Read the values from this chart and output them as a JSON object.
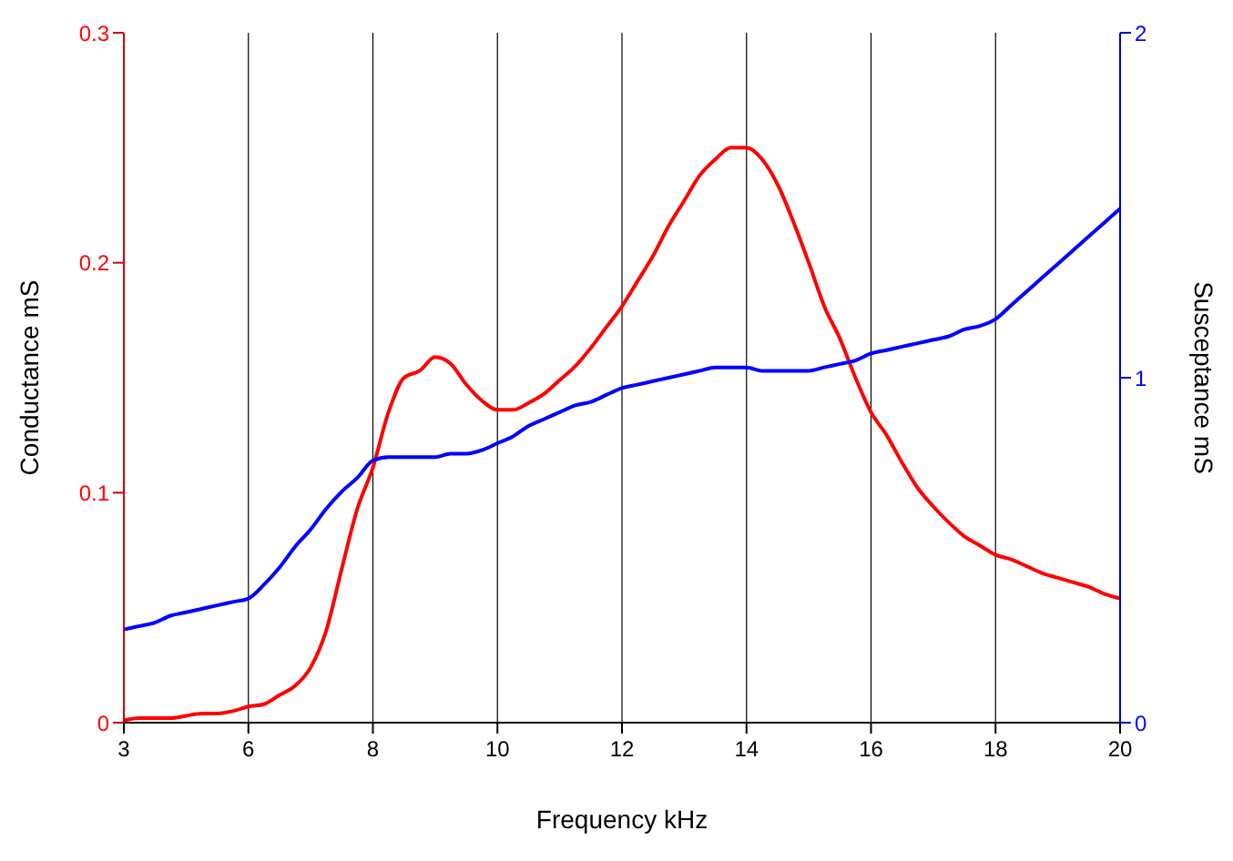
{
  "chart_data": {
    "type": "line",
    "xlabel": "Frequency kHz",
    "ylabel": "Conductance mS",
    "y2label": "Susceptance mS",
    "categories": [
      "3",
      null,
      null,
      null,
      null,
      null,
      null,
      null,
      "6",
      null,
      null,
      null,
      null,
      null,
      null,
      null,
      "8",
      null,
      null,
      null,
      null,
      null,
      null,
      null,
      "10",
      null,
      null,
      null,
      null,
      null,
      null,
      null,
      "12",
      null,
      null,
      null,
      null,
      null,
      null,
      null,
      "14",
      null,
      null,
      null,
      null,
      null,
      null,
      null,
      "16",
      null,
      null,
      null,
      null,
      null,
      null,
      null,
      "18",
      null,
      null,
      null,
      null,
      null,
      null,
      null,
      "20"
    ],
    "series": [
      {
        "color": "#ff0000",
        "values": [
          0.001,
          0.002,
          0.002,
          0.002,
          0.003,
          0.004,
          0.004,
          0.005,
          0.007,
          0.008,
          0.012,
          0.016,
          0.024,
          0.04,
          0.067,
          0.093,
          0.111,
          0.135,
          0.15,
          0.153,
          0.159,
          0.156,
          0.147,
          0.14,
          0.136,
          0.136,
          0.139,
          0.143,
          0.149,
          0.155,
          0.163,
          0.172,
          0.181,
          0.192,
          0.203,
          0.216,
          0.227,
          0.238,
          0.245,
          0.25,
          0.25,
          0.245,
          0.234,
          0.218,
          0.2,
          0.181,
          0.167,
          0.15,
          0.135,
          0.125,
          0.113,
          0.102,
          0.094,
          0.087,
          0.081,
          0.077,
          0.073,
          0.071,
          0.068,
          0.065,
          0.063,
          0.061,
          0.059,
          0.056,
          0.054
        ]
      },
      {
        "color": "#0000ff",
        "axis": "y2",
        "values": [
          0.27,
          0.28,
          0.29,
          0.31,
          0.32,
          0.33,
          0.34,
          0.35,
          0.36,
          0.4,
          0.45,
          0.51,
          0.56,
          0.62,
          0.67,
          0.71,
          0.76,
          0.77,
          0.77,
          0.77,
          0.77,
          0.78,
          0.78,
          0.79,
          0.81,
          0.83,
          0.86,
          0.88,
          0.9,
          0.92,
          0.93,
          0.95,
          0.97,
          0.98,
          0.99,
          1.0,
          1.01,
          1.02,
          1.03,
          1.03,
          1.03,
          1.02,
          1.02,
          1.02,
          1.02,
          1.03,
          1.04,
          1.05,
          1.07,
          1.08,
          1.09,
          1.1,
          1.11,
          1.12,
          1.14,
          1.15,
          1.17,
          1.21,
          1.25,
          1.29,
          1.33,
          1.37,
          1.41,
          1.45,
          1.49
        ]
      }
    ],
    "ylim": [
      0,
      0.3
    ],
    "yticks": [
      0,
      0.1,
      0.2,
      0.3
    ],
    "y2lim": [
      0,
      2
    ],
    "y2ticks": [
      0,
      1,
      2
    ],
    "grid": "x",
    "legend": false,
    "marker": "none",
    "line_style": "solid"
  }
}
